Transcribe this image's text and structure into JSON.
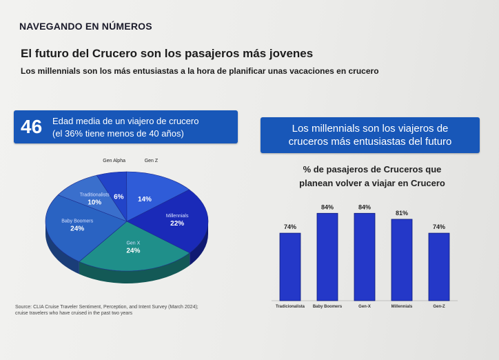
{
  "header": {
    "section_label": "NAVEGANDO EN NÚMEROS",
    "title": "El futuro del Crucero son los pasajeros más jovenes",
    "subtitle": "Los millennials son los más entusiastas a la hora de planificar unas vacaciones en crucero"
  },
  "stat": {
    "number": "46",
    "line1": "Edad media de un viajero de crucero",
    "line2": "(el 36% tiene menos de 40 años)"
  },
  "highlight": {
    "line1": "Los millennials son los viajeros de",
    "line2": "cruceros más entusiastas del futuro"
  },
  "source": {
    "line1": "Source: CLIA Cruise Traveler Sentiment, Perception, and Intent Survey (March 2024);",
    "line2": "cruise travelers who have cruised in the past two years"
  },
  "colors": {
    "box_blue": "#1857b8",
    "bar_blue": "#2438c8"
  },
  "chart_data": [
    {
      "type": "pie",
      "title": "",
      "labels": [
        "Gen Alpha",
        "Gen Z",
        "Millennials",
        "Gen X",
        "Baby Boomers",
        "Traditionalists"
      ],
      "values": [
        6,
        14,
        22,
        24,
        24,
        10
      ],
      "value_labels": [
        "6%",
        "14%",
        "22%",
        "24%",
        "24%",
        "10%"
      ],
      "colors": [
        "#2244c8",
        "#2f5cd8",
        "#1a2ab8",
        "#1f8f8a",
        "#2a63c2",
        "#3a6fcc"
      ]
    },
    {
      "type": "bar",
      "title_line1": "% de pasajeros de Cruceros que",
      "title_line2": "planean volver a viajar en Crucero",
      "categories": [
        "Tradicionalista",
        "Baby Boomers",
        "Gen-X",
        "Millennials",
        "Gen-Z"
      ],
      "values": [
        74,
        84,
        84,
        81,
        74
      ],
      "value_labels": [
        "74%",
        "84%",
        "84%",
        "81%",
        "74%"
      ],
      "ylim": [
        0,
        90
      ],
      "grid": false
    }
  ]
}
